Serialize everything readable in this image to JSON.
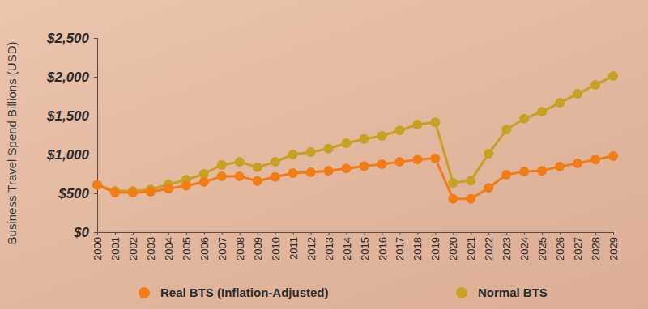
{
  "chart_data": {
    "type": "line",
    "y_label": "Business Travel Spend Billions (USD)",
    "categories": [
      "2000",
      "2001",
      "2002",
      "2003",
      "2004",
      "2005",
      "2006",
      "2007",
      "2008",
      "2009",
      "2010",
      "2011",
      "2012",
      "2013",
      "2014",
      "2015",
      "2016",
      "2017",
      "2018",
      "2019",
      "2020",
      "2021",
      "2022",
      "2023",
      "2024",
      "2025",
      "2026",
      "2027",
      "2028",
      "2029"
    ],
    "series": [
      {
        "name": "Real BTS (Inflation-Adjusted)",
        "color": "#f07d18",
        "marker": "circle",
        "values": [
          610,
          510,
          510,
          520,
          560,
          600,
          645,
          720,
          720,
          660,
          710,
          760,
          770,
          790,
          820,
          850,
          875,
          905,
          935,
          950,
          430,
          430,
          570,
          740,
          780,
          790,
          845,
          885,
          935,
          980
        ]
      },
      {
        "name": "Normal BTS",
        "color": "#c8a024",
        "marker": "circle",
        "values": [
          610,
          530,
          530,
          550,
          615,
          675,
          750,
          865,
          905,
          835,
          905,
          1000,
          1030,
          1075,
          1145,
          1200,
          1240,
          1310,
          1385,
          1415,
          635,
          665,
          1010,
          1320,
          1460,
          1550,
          1665,
          1780,
          1895,
          2010
        ]
      }
    ],
    "ylim": [
      0,
      2500
    ],
    "yticks": [
      {
        "value": 0,
        "label": "$0"
      },
      {
        "value": 500,
        "label": "$500"
      },
      {
        "value": 1000,
        "label": "$1,000"
      },
      {
        "value": 1500,
        "label": "$1,500"
      },
      {
        "value": 2000,
        "label": "$2,000"
      },
      {
        "value": 2500,
        "label": "$2,500"
      }
    ],
    "grid": false,
    "legend": "bottom"
  }
}
